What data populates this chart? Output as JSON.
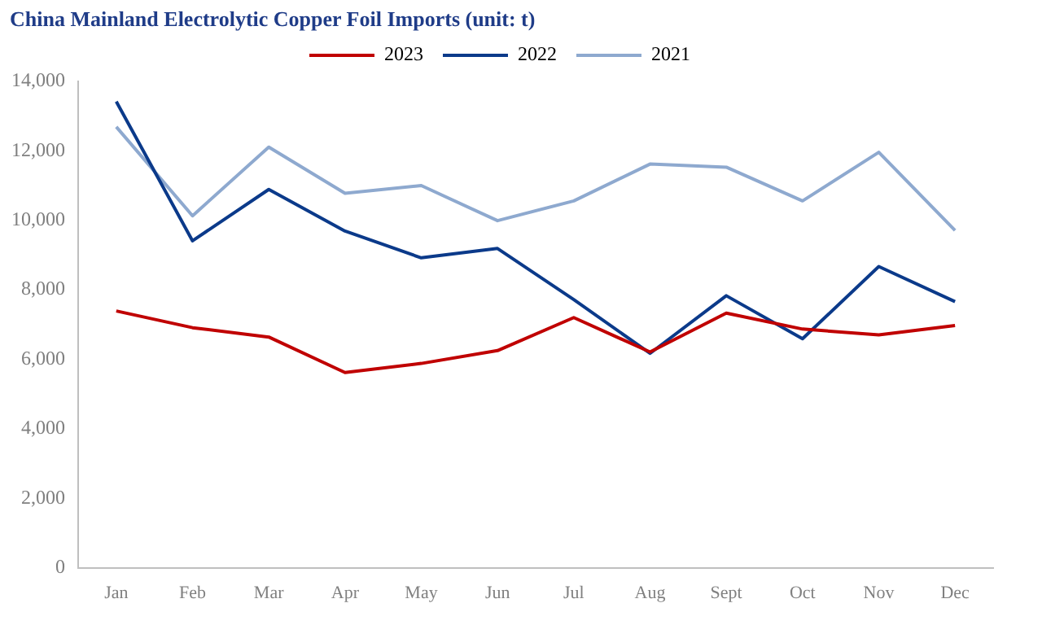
{
  "chart_data": {
    "type": "line",
    "title": "China Mainland Electrolytic Copper Foil Imports (unit: t)",
    "categories": [
      "Jan",
      "Feb",
      "Mar",
      "Apr",
      "May",
      "Jun",
      "Jul",
      "Aug",
      "Sept",
      "Oct",
      "Nov",
      "Dec"
    ],
    "series": [
      {
        "name": "2023",
        "color": "#c00000",
        "values": [
          7390,
          6910,
          6640,
          5620,
          5880,
          6250,
          7200,
          6210,
          7330,
          6870,
          6700,
          6970
        ]
      },
      {
        "name": "2022",
        "color": "#0b3a8a",
        "values": [
          13420,
          9410,
          10890,
          9690,
          8920,
          9190,
          7720,
          6170,
          7830,
          6590,
          8670,
          7660
        ]
      },
      {
        "name": "2021",
        "color": "#8ea9cf",
        "values": [
          12690,
          10130,
          12110,
          10780,
          11000,
          9990,
          10560,
          11620,
          11530,
          10560,
          11960,
          9710
        ]
      }
    ],
    "ylim": [
      0,
      14000
    ],
    "yticks": [
      0,
      {
        "value": 2000,
        "label": "2,000"
      },
      {
        "value": 4000,
        "label": "4,000"
      },
      {
        "value": 6000,
        "label": "6,000"
      },
      {
        "value": 8000,
        "label": "8,000"
      },
      {
        "value": 10000,
        "label": "10,000"
      },
      {
        "value": 12000,
        "label": "12,000"
      },
      {
        "value": 14000,
        "label": "14,000"
      }
    ],
    "grid": false,
    "legend": "top",
    "marker": "none",
    "line_style": "solid"
  }
}
